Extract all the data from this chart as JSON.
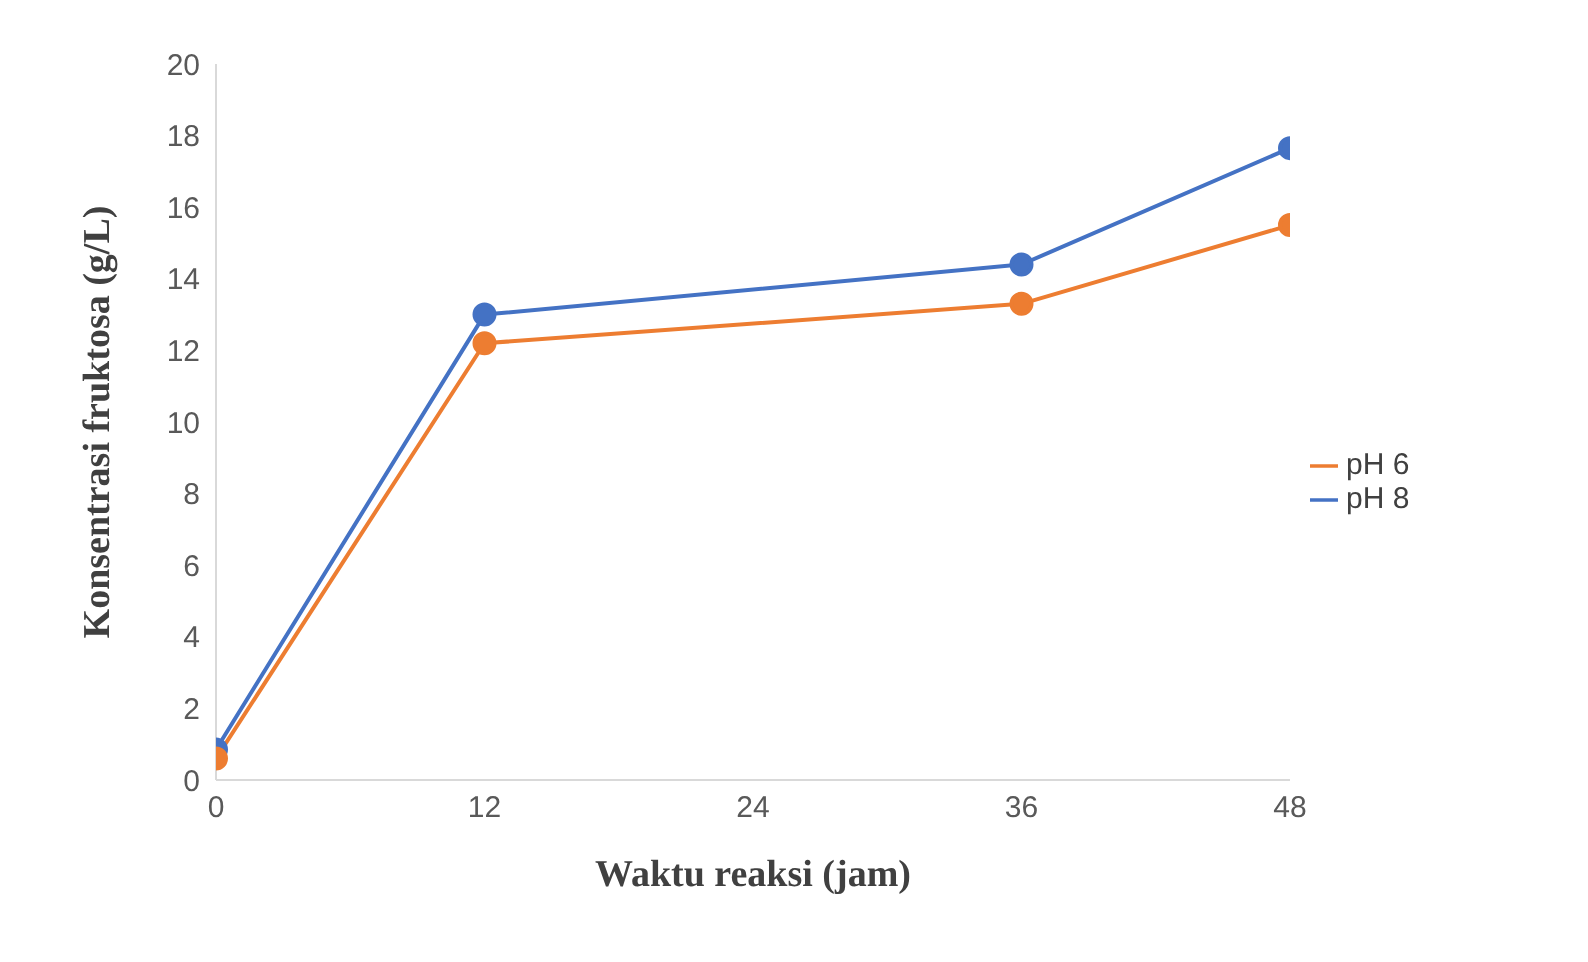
{
  "chart_data": {
    "type": "line",
    "xlabel": "Waktu reaksi (jam)",
    "ylabel": "Konsentrasi fruktosa (g/L)",
    "x": [
      0,
      12,
      36,
      48
    ],
    "series": [
      {
        "name": "pH 8",
        "color": "#4472c4",
        "values": [
          0.85,
          13.0,
          14.4,
          17.65
        ]
      },
      {
        "name": "pH 6",
        "color": "#ed7d31",
        "values": [
          0.6,
          12.2,
          13.3,
          15.5
        ]
      }
    ],
    "xlim": [
      0,
      48
    ],
    "xticks": [
      0,
      12,
      24,
      36,
      48
    ],
    "ylim": [
      0,
      20
    ],
    "yticks": [
      0,
      2,
      4,
      6,
      8,
      10,
      12,
      14,
      16,
      18,
      20
    ],
    "grid": false,
    "legend": "right",
    "marker": "circle",
    "line_style": "solid"
  }
}
